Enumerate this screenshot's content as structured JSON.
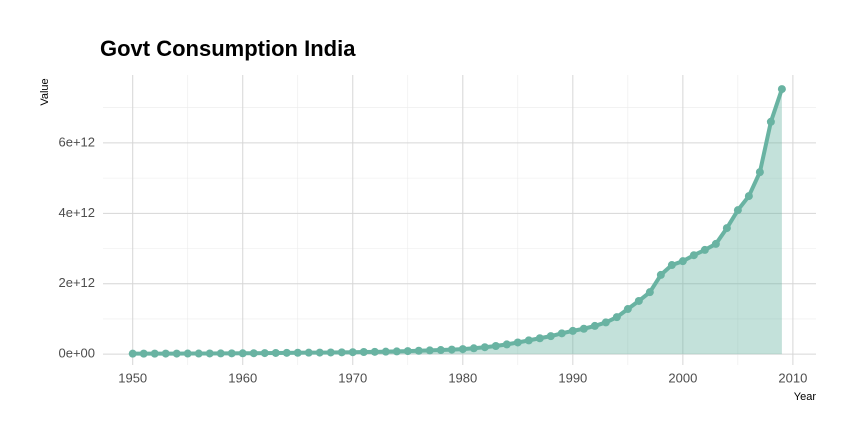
{
  "chart_data": {
    "type": "area-line",
    "title": "Govt Consumption India",
    "x_label": "Year",
    "y_label": "Value",
    "x": [
      1950,
      1951,
      1952,
      1953,
      1954,
      1955,
      1956,
      1957,
      1958,
      1959,
      1960,
      1961,
      1962,
      1963,
      1964,
      1965,
      1966,
      1967,
      1968,
      1969,
      1970,
      1971,
      1972,
      1973,
      1974,
      1975,
      1976,
      1977,
      1978,
      1979,
      1980,
      1981,
      1982,
      1983,
      1984,
      1985,
      1986,
      1987,
      1988,
      1989,
      1990,
      1991,
      1992,
      1993,
      1994,
      1995,
      1996,
      1997,
      1998,
      1999,
      2000,
      2001,
      2002,
      2003,
      2004,
      2005,
      2006,
      2007,
      2008,
      2009
    ],
    "series": [
      {
        "name": "Value",
        "color": "#69b3a2",
        "values": [
          12000000000.0,
          13000000000.0,
          13000000000.0,
          14000000000.0,
          14000000000.0,
          15000000000.0,
          16000000000.0,
          18000000000.0,
          19000000000.0,
          21000000000.0,
          23000000000.0,
          25000000000.0,
          28000000000.0,
          32000000000.0,
          35000000000.0,
          38000000000.0,
          40000000000.0,
          43000000000.0,
          46000000000.0,
          50000000000.0,
          54000000000.0,
          59000000000.0,
          64000000000.0,
          69000000000.0,
          76000000000.0,
          85000000000.0,
          95000000000.0,
          105000000000.0,
          115000000000.0,
          128000000000.0,
          142000000000.0,
          165000000000.0,
          195000000000.0,
          230000000000.0,
          275000000000.0,
          330000000000.0,
          390000000000.0,
          450000000000.0,
          510000000000.0,
          590000000000.0,
          660000000000.0,
          720000000000.0,
          800000000000.0,
          900000000000.0,
          1050000000000.0,
          1280000000000.0,
          1510000000000.0,
          1760000000000.0,
          2250000000000.0,
          2530000000000.0,
          2640000000000.0,
          2810000000000.0,
          2960000000000.0,
          3130000000000.0,
          3580000000000.0,
          4090000000000.0,
          4490000000000.0,
          5170000000000.0,
          6600000000000.0,
          7530000000000.0
        ]
      }
    ],
    "xlim": [
      1947.3,
      2012.1
    ],
    "xticks": [
      1950,
      1960,
      1970,
      1980,
      1990,
      2000,
      2010
    ],
    "ylim": [
      -310000000000.0,
      7930000000000.0
    ],
    "yticks": [
      {
        "value": 0,
        "label": "0e+00"
      },
      {
        "value": 2000000000000.0,
        "label": "2e+12"
      },
      {
        "value": 4000000000000.0,
        "label": "4e+12"
      },
      {
        "value": 6000000000000.0,
        "label": "6e+12"
      }
    ],
    "grid": true
  }
}
